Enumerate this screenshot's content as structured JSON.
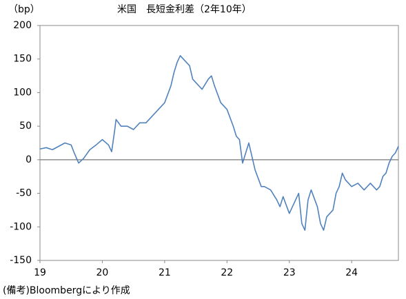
{
  "chart_data": {
    "type": "line",
    "title": "米国　長短金利差（2年10年）",
    "y_unit": "（bp）",
    "note": "(備考)Bloombergにより作成",
    "x": [
      19.0,
      19.1,
      19.2,
      19.3,
      19.4,
      19.5,
      19.55,
      19.62,
      19.7,
      19.8,
      19.9,
      20.0,
      20.1,
      20.15,
      20.2,
      20.22,
      20.3,
      20.4,
      20.5,
      20.6,
      20.7,
      20.8,
      20.9,
      21.0,
      21.1,
      21.15,
      21.2,
      21.25,
      21.3,
      21.4,
      21.45,
      21.5,
      21.6,
      21.7,
      21.75,
      21.8,
      21.9,
      22.0,
      22.1,
      22.15,
      22.2,
      22.25,
      22.35,
      22.45,
      22.55,
      22.6,
      22.7,
      22.8,
      22.85,
      22.9,
      23.0,
      23.1,
      23.15,
      23.2,
      23.25,
      23.3,
      23.35,
      23.45,
      23.5,
      23.55,
      23.6,
      23.7,
      23.75,
      23.8,
      23.85,
      23.9,
      24.0,
      24.1,
      24.2,
      24.3,
      24.4,
      24.45,
      24.5,
      24.55,
      24.6,
      24.65,
      24.7,
      24.75
    ],
    "series": [
      {
        "color": "#4f81bd",
        "values": [
          16,
          18,
          15,
          20,
          25,
          22,
          10,
          -5,
          2,
          15,
          22,
          30,
          22,
          12,
          45,
          60,
          50,
          50,
          45,
          55,
          55,
          65,
          75,
          85,
          110,
          130,
          145,
          155,
          150,
          140,
          120,
          115,
          105,
          120,
          125,
          110,
          85,
          75,
          50,
          35,
          30,
          -5,
          25,
          -15,
          -40,
          -40,
          -45,
          -60,
          -70,
          -55,
          -80,
          -60,
          -50,
          -95,
          -105,
          -60,
          -45,
          -70,
          -95,
          -105,
          -85,
          -75,
          -50,
          -40,
          -20,
          -30,
          -40,
          -35,
          -45,
          -35,
          -45,
          -40,
          -25,
          -20,
          -5,
          5,
          10,
          20
        ]
      }
    ],
    "xlim": [
      19,
      24.75
    ],
    "xticks": [
      19,
      20,
      21,
      22,
      23,
      24
    ],
    "ylim": [
      -150,
      200
    ],
    "yticks": [
      -150,
      -100,
      -50,
      0,
      50,
      100,
      150,
      200
    ]
  }
}
